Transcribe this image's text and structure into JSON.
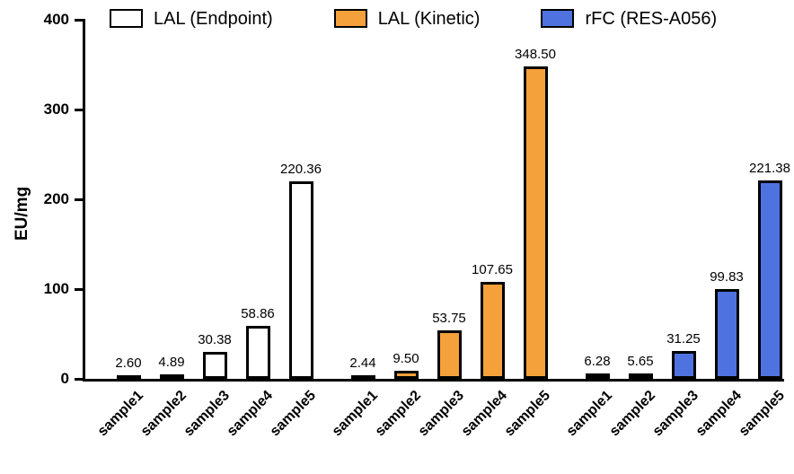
{
  "chart_data": {
    "type": "bar",
    "title": "",
    "xlabel": "",
    "ylabel": "EU/mg",
    "ylim": [
      0,
      400
    ],
    "yticks": [
      0,
      100,
      200,
      300,
      400
    ],
    "grid": false,
    "legend_position": "top",
    "categories": [
      "sample1",
      "sample2",
      "sample3",
      "sample4",
      "sample5"
    ],
    "series": [
      {
        "name": "LAL (Endpoint)",
        "color": "#FFFFFF",
        "values": [
          2.6,
          4.89,
          30.38,
          58.86,
          220.36
        ]
      },
      {
        "name": "LAL (Kinetic)",
        "color": "#F5A13B",
        "values": [
          2.44,
          9.5,
          53.75,
          107.65,
          348.5
        ]
      },
      {
        "name": "rFC (RES-A056)",
        "color": "#4E73E1",
        "values": [
          6.28,
          5.65,
          31.25,
          99.83,
          221.38
        ]
      }
    ],
    "bar_border_color": "#000000",
    "value_label_decimals": 2
  }
}
